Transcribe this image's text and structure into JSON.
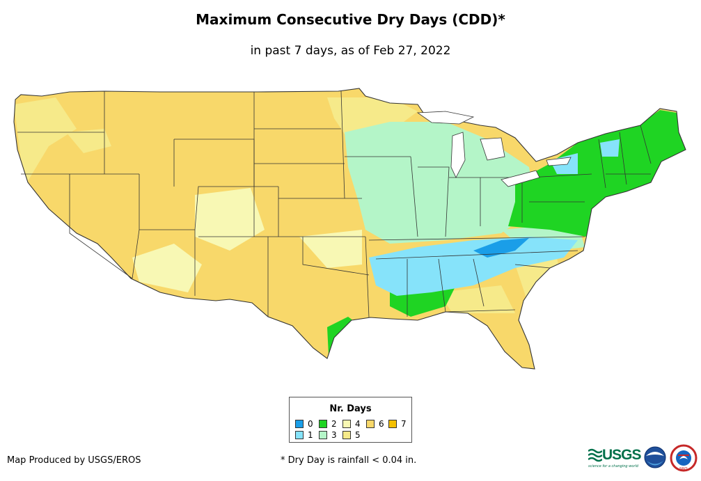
{
  "title": "Maximum Consecutive Dry Days (CDD)*",
  "subtitle": "in past 7 days, as of Feb 27, 2022",
  "legend": {
    "title": "Nr. Days",
    "items": [
      {
        "label": "0",
        "color": "#1a9ee8"
      },
      {
        "label": "1",
        "color": "#86e3fa"
      },
      {
        "label": "2",
        "color": "#1fd423"
      },
      {
        "label": "3",
        "color": "#b4f5c8"
      },
      {
        "label": "4",
        "color": "#f8f8b4"
      },
      {
        "label": "5",
        "color": "#f6ea8a"
      },
      {
        "label": "6",
        "color": "#f8d86a"
      },
      {
        "label": "7",
        "color": "#f5c000"
      }
    ]
  },
  "footer": {
    "producer": "Map Produced by USGS/EROS",
    "note": "* Dry Day is rainfall < 0.04 in."
  },
  "logos": {
    "usgs": "USGS",
    "usgs_tagline": "science for a changing world",
    "noaa": "noaa",
    "nws": "NWS"
  }
}
